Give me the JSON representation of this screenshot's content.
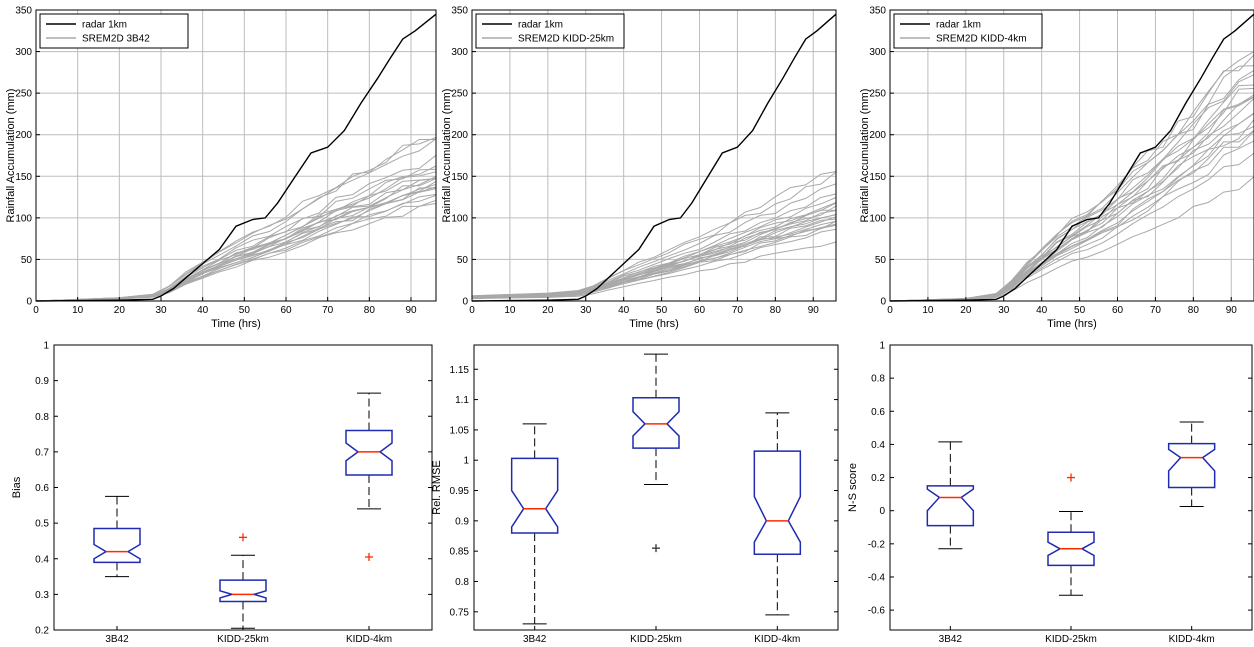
{
  "colors": {
    "radar": "#000000",
    "ensemble": "#a9a9a9",
    "grid": "#bdbdbd",
    "box": "#1f2bb0",
    "median": "#ff2a00",
    "outlier_red": "#ff2a00",
    "outlier_black": "#333333"
  },
  "chart_data": [
    {
      "type": "line",
      "panel": "top-left",
      "xlabel": "Time (hrs)",
      "ylabel": "Rainfall Accumulation (mm)",
      "xlim": [
        0,
        96
      ],
      "ylim": [
        0,
        350
      ],
      "xticks": [
        0,
        10,
        20,
        30,
        40,
        50,
        60,
        70,
        80,
        90
      ],
      "yticks": [
        0,
        50,
        100,
        150,
        200,
        250,
        300,
        350
      ],
      "grid": true,
      "legend": "top-left",
      "legend_entries": [
        "radar 1km",
        "SREM2D 3B42"
      ],
      "radar": {
        "x": [
          0,
          20,
          28,
          30,
          33,
          36,
          40,
          44,
          48,
          52,
          55,
          58,
          62,
          66,
          70,
          74,
          78,
          82,
          85,
          88,
          91,
          94,
          96
        ],
        "y": [
          0,
          1,
          2,
          6,
          15,
          28,
          45,
          62,
          90,
          98,
          100,
          118,
          148,
          178,
          185,
          205,
          238,
          268,
          292,
          315,
          325,
          337,
          345
        ]
      },
      "ensemble_time": [
        0,
        20,
        28,
        32,
        36,
        40,
        44,
        48,
        52,
        56,
        60,
        64,
        68,
        72,
        76,
        80,
        84,
        88,
        92,
        96
      ],
      "ensemble_shape": [
        0,
        0.02,
        0.04,
        0.09,
        0.17,
        0.24,
        0.3,
        0.36,
        0.41,
        0.46,
        0.52,
        0.58,
        0.64,
        0.7,
        0.75,
        0.8,
        0.86,
        0.92,
        0.96,
        1.0
      ],
      "ensemble_finals": [
        200,
        196,
        188,
        172,
        165,
        160,
        157,
        153,
        150,
        147,
        145,
        142,
        140,
        138,
        136,
        133,
        130,
        127,
        122,
        115
      ]
    },
    {
      "type": "line",
      "panel": "top-middle",
      "xlabel": "Time (hrs)",
      "ylabel": "Rainfall Accumulation (mm)",
      "xlim": [
        0,
        96
      ],
      "ylim": [
        0,
        350
      ],
      "xticks": [
        0,
        10,
        20,
        30,
        40,
        50,
        60,
        70,
        80,
        90
      ],
      "yticks": [
        0,
        50,
        100,
        150,
        200,
        250,
        300,
        350
      ],
      "grid": true,
      "legend": "top-left",
      "legend_entries": [
        "radar 1km",
        "SREM2D KIDD-25km"
      ],
      "radar": {
        "x": [
          0,
          20,
          28,
          30,
          33,
          36,
          40,
          44,
          48,
          52,
          55,
          58,
          62,
          66,
          70,
          74,
          78,
          82,
          85,
          88,
          91,
          94,
          96
        ],
        "y": [
          0,
          1,
          2,
          6,
          15,
          28,
          45,
          62,
          90,
          98,
          100,
          118,
          148,
          178,
          185,
          205,
          238,
          268,
          292,
          315,
          325,
          337,
          345
        ]
      },
      "ensemble_time": [
        0,
        20,
        28,
        32,
        36,
        40,
        44,
        48,
        52,
        56,
        60,
        64,
        68,
        72,
        76,
        80,
        84,
        88,
        92,
        96
      ],
      "ensemble_shape": [
        0.04,
        0.06,
        0.08,
        0.12,
        0.18,
        0.24,
        0.29,
        0.34,
        0.39,
        0.44,
        0.5,
        0.55,
        0.61,
        0.67,
        0.73,
        0.78,
        0.84,
        0.9,
        0.95,
        1.0
      ],
      "ensemble_finals": [
        158,
        150,
        140,
        128,
        122,
        118,
        115,
        112,
        110,
        108,
        106,
        104,
        102,
        100,
        98,
        95,
        92,
        90,
        86,
        72
      ]
    },
    {
      "type": "line",
      "panel": "top-right",
      "xlabel": "Time (hrs)",
      "ylabel": "Rainfall Accumulation (mm)",
      "xlim": [
        0,
        96
      ],
      "ylim": [
        0,
        350
      ],
      "xticks": [
        0,
        10,
        20,
        30,
        40,
        50,
        60,
        70,
        80,
        90
      ],
      "yticks": [
        0,
        50,
        100,
        150,
        200,
        250,
        300,
        350
      ],
      "grid": true,
      "legend": "top-left",
      "legend_entries": [
        "radar 1km",
        "SREM2D KIDD-4km"
      ],
      "radar": {
        "x": [
          0,
          20,
          28,
          30,
          33,
          36,
          40,
          44,
          48,
          52,
          55,
          58,
          62,
          66,
          70,
          74,
          78,
          82,
          85,
          88,
          91,
          94,
          96
        ],
        "y": [
          0,
          1,
          2,
          6,
          15,
          28,
          45,
          62,
          90,
          98,
          100,
          118,
          148,
          178,
          185,
          205,
          238,
          268,
          292,
          315,
          325,
          337,
          345
        ]
      },
      "ensemble_time": [
        0,
        20,
        28,
        32,
        36,
        40,
        44,
        48,
        52,
        56,
        60,
        64,
        68,
        72,
        76,
        80,
        84,
        88,
        92,
        96
      ],
      "ensemble_shape": [
        0,
        0.01,
        0.03,
        0.08,
        0.15,
        0.21,
        0.27,
        0.32,
        0.36,
        0.41,
        0.46,
        0.52,
        0.58,
        0.64,
        0.7,
        0.76,
        0.83,
        0.9,
        0.95,
        1.0
      ],
      "ensemble_finals": [
        300,
        298,
        290,
        280,
        272,
        265,
        258,
        252,
        248,
        242,
        236,
        230,
        224,
        218,
        212,
        205,
        198,
        190,
        175,
        145
      ]
    },
    {
      "type": "boxplot",
      "panel": "bottom-left",
      "ylabel": "Bias",
      "categories": [
        "3B42",
        "KIDD-25km",
        "KIDD-4km"
      ],
      "ylim": [
        0.2,
        1.0
      ],
      "yticks": [
        0.2,
        0.3,
        0.4,
        0.5,
        0.6,
        0.7,
        0.8,
        0.9,
        1
      ],
      "ytick_labels": [
        "0.2",
        "0.3",
        "0.4",
        "0.5",
        "0.6",
        "0.7",
        "0.8",
        "0.9",
        "1"
      ],
      "grid": false,
      "boxes": [
        {
          "q1": 0.39,
          "median": 0.42,
          "q3": 0.485,
          "notch_lo": 0.4,
          "notch_hi": 0.44,
          "whisker_lo": 0.35,
          "whisker_hi": 0.575,
          "outliers": [],
          "outlier_marker": "+",
          "outlier_color": "red",
          "whisker_style": "dashed"
        },
        {
          "q1": 0.28,
          "median": 0.3,
          "q3": 0.34,
          "notch_lo": 0.29,
          "notch_hi": 0.31,
          "whisker_lo": 0.205,
          "whisker_hi": 0.41,
          "outliers": [
            0.46
          ],
          "outlier_marker": "+",
          "outlier_color": "red",
          "whisker_style": "dashed"
        },
        {
          "q1": 0.635,
          "median": 0.7,
          "q3": 0.76,
          "notch_lo": 0.675,
          "notch_hi": 0.725,
          "whisker_lo": 0.54,
          "whisker_hi": 0.865,
          "outliers": [
            0.405
          ],
          "outlier_marker": "+",
          "outlier_color": "red",
          "whisker_style": "dashed"
        }
      ]
    },
    {
      "type": "boxplot",
      "panel": "bottom-middle",
      "ylabel": "Rel. RMSE",
      "categories": [
        "3B42",
        "KIDD-25km",
        "KIDD-4km"
      ],
      "ylim": [
        0.72,
        1.19
      ],
      "yticks": [
        0.75,
        0.8,
        0.85,
        0.9,
        0.95,
        1,
        1.05,
        1.1,
        1.15
      ],
      "ytick_labels": [
        "0.75",
        "0.8",
        "0.85",
        "0.9",
        "0.95",
        "1",
        "1.05",
        "1.1",
        "1.15"
      ],
      "grid": false,
      "boxes": [
        {
          "q1": 0.88,
          "median": 0.92,
          "q3": 1.003,
          "notch_lo": 0.89,
          "notch_hi": 0.95,
          "whisker_lo": 0.73,
          "whisker_hi": 1.06,
          "outliers": [],
          "outlier_marker": "+",
          "outlier_color": "black",
          "whisker_style": "dashed"
        },
        {
          "q1": 1.02,
          "median": 1.06,
          "q3": 1.103,
          "notch_lo": 1.04,
          "notch_hi": 1.08,
          "whisker_lo": 0.96,
          "whisker_hi": 1.175,
          "outliers": [
            0.855
          ],
          "outlier_marker": "+",
          "outlier_color": "black",
          "whisker_style": "dashed"
        },
        {
          "q1": 0.845,
          "median": 0.9,
          "q3": 1.015,
          "notch_lo": 0.865,
          "notch_hi": 0.94,
          "whisker_lo": 0.745,
          "whisker_hi": 1.078,
          "outliers": [],
          "outlier_marker": "+",
          "outlier_color": "black",
          "whisker_style": "dashed"
        }
      ]
    },
    {
      "type": "boxplot",
      "panel": "bottom-right",
      "ylabel": "N-S score",
      "categories": [
        "3B42",
        "KIDD-25km",
        "KIDD-4km"
      ],
      "ylim": [
        -0.72,
        1.0
      ],
      "yticks": [
        -0.6,
        -0.4,
        -0.2,
        0,
        0.2,
        0.4,
        0.6,
        0.8,
        1
      ],
      "ytick_labels": [
        "-0.6",
        "-0.4",
        "-0.2",
        "0",
        "0.2",
        "0.4",
        "0.6",
        "0.8",
        "1"
      ],
      "grid": false,
      "boxes": [
        {
          "q1": -0.09,
          "median": 0.08,
          "q3": 0.15,
          "notch_lo": 0.0,
          "notch_hi": 0.13,
          "whisker_lo": -0.23,
          "whisker_hi": 0.415,
          "outliers": [],
          "outlier_marker": "+",
          "outlier_color": "red",
          "whisker_style": "dashed"
        },
        {
          "q1": -0.33,
          "median": -0.23,
          "q3": -0.13,
          "notch_lo": -0.27,
          "notch_hi": -0.19,
          "whisker_lo": -0.51,
          "whisker_hi": -0.005,
          "outliers": [
            0.2
          ],
          "outlier_marker": "+",
          "outlier_color": "red",
          "whisker_style": "dashed"
        },
        {
          "q1": 0.14,
          "median": 0.32,
          "q3": 0.405,
          "notch_lo": 0.24,
          "notch_hi": 0.37,
          "whisker_lo": 0.025,
          "whisker_hi": 0.535,
          "outliers": [],
          "outlier_marker": "+",
          "outlier_color": "red",
          "whisker_style": "dashed"
        }
      ]
    }
  ]
}
